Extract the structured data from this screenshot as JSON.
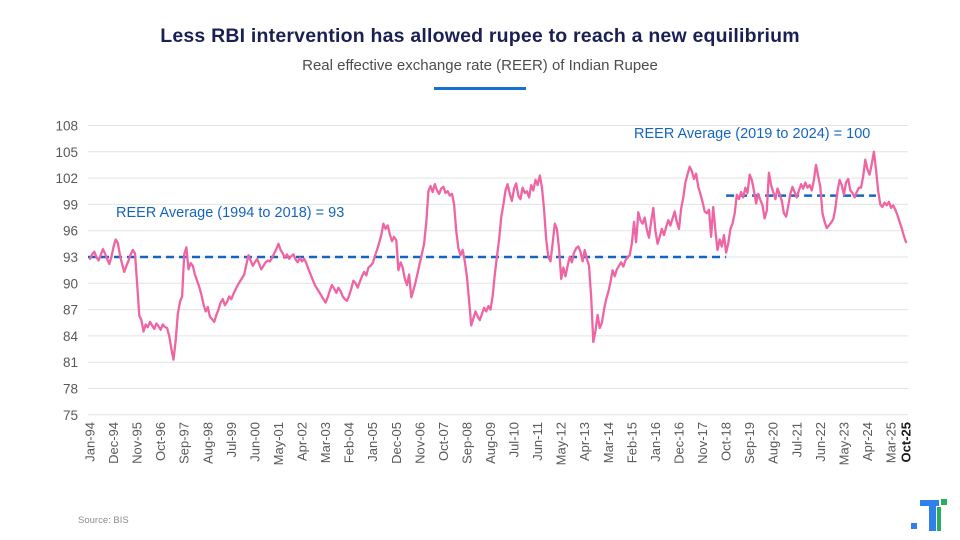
{
  "header": {
    "title": "Less RBI intervention has allowed rupee to reach a new equilibrium",
    "subtitle": "Real effective exchange rate (REER) of Indian Rupee"
  },
  "footer": {
    "source": "Source: BIS"
  },
  "colors": {
    "title_navy": "#1b2054",
    "series_pink": "#ef64a3",
    "reference_blue": "#1565c0",
    "grid_gray": "#e3e3e3",
    "axis_text_gray": "#595959",
    "logo_blue": "#2f80ed",
    "logo_green": "#27ae60"
  },
  "chart_data": {
    "type": "line",
    "title": "Less RBI intervention has allowed rupee to reach a new equilibrium",
    "subtitle": "Real effective exchange rate (REER) of Indian Rupee",
    "xlabel": "",
    "ylabel": "",
    "ylim": [
      75,
      108
    ],
    "y_ticks": [
      75,
      78,
      81,
      84,
      87,
      90,
      93,
      96,
      99,
      102,
      105,
      108
    ],
    "grid": true,
    "legend_position": "none",
    "x_tick_labels": [
      "Jan-94",
      "Dec-94",
      "Nov-95",
      "Oct-96",
      "Sep-97",
      "Aug-98",
      "Jul-99",
      "Jun-00",
      "May-01",
      "Apr-02",
      "Mar-03",
      "Feb-04",
      "Jan-05",
      "Dec-05",
      "Nov-06",
      "Oct-07",
      "Sep-08",
      "Aug-09",
      "Jul-10",
      "Jun-11",
      "May-12",
      "Apr-13",
      "Mar-14",
      "Feb-15",
      "Jan-16",
      "Dec-16",
      "Nov-17",
      "Oct-18",
      "Sep-19",
      "Aug-20",
      "Jul-21",
      "Jun-22",
      "May-23",
      "Apr-24",
      "Mar-25",
      "Oct-25"
    ],
    "x_tick_month_offsets": [
      0,
      11,
      22,
      33,
      44,
      55,
      66,
      77,
      88,
      99,
      110,
      121,
      132,
      143,
      154,
      165,
      176,
      187,
      198,
      209,
      220,
      231,
      242,
      253,
      264,
      275,
      286,
      297,
      308,
      319,
      330,
      341,
      352,
      363,
      374,
      381
    ],
    "x_range_months": [
      "Jan-94",
      "Oct-25"
    ],
    "months_total": 382,
    "series": [
      {
        "name": "REER of Indian Rupee",
        "color": "#ef64a3",
        "values": [
          92.8,
          93.3,
          93.6,
          93.0,
          92.6,
          93.2,
          93.9,
          93.4,
          92.8,
          92.2,
          93.0,
          94.2,
          95.0,
          94.6,
          93.2,
          92.2,
          91.3,
          92.0,
          92.6,
          93.3,
          93.8,
          93.4,
          90.0,
          86.3,
          85.8,
          84.5,
          85.3,
          85.0,
          85.6,
          85.2,
          84.8,
          85.4,
          85.1,
          84.7,
          85.3,
          85.0,
          84.9,
          84.0,
          82.5,
          81.3,
          83.5,
          86.5,
          87.9,
          88.5,
          93.3,
          94.1,
          91.6,
          92.3,
          92.0,
          91.0,
          90.3,
          89.6,
          88.7,
          87.6,
          86.8,
          87.3,
          86.2,
          85.9,
          85.6,
          86.4,
          87.0,
          87.8,
          88.2,
          87.5,
          87.9,
          88.5,
          88.2,
          88.8,
          89.3,
          89.8,
          90.2,
          90.6,
          91.0,
          92.1,
          93.2,
          92.6,
          92.0,
          92.4,
          92.8,
          92.2,
          91.6,
          92.0,
          92.4,
          92.6,
          92.5,
          92.9,
          93.4,
          93.9,
          94.5,
          93.8,
          93.4,
          92.9,
          93.3,
          92.8,
          93.1,
          93.3,
          92.7,
          92.4,
          92.9,
          92.5,
          92.8,
          92.3,
          91.6,
          91.0,
          90.4,
          89.8,
          89.4,
          89.0,
          88.6,
          88.2,
          87.8,
          88.4,
          89.2,
          89.8,
          89.4,
          88.9,
          89.5,
          89.1,
          88.5,
          88.2,
          88.0,
          88.6,
          89.4,
          90.3,
          90.0,
          89.5,
          90.2,
          90.8,
          91.3,
          90.9,
          91.8,
          92.0,
          92.3,
          93.1,
          93.8,
          94.6,
          95.5,
          96.8,
          96.2,
          96.6,
          95.6,
          94.8,
          95.3,
          94.9,
          91.5,
          92.4,
          91.8,
          90.5,
          89.8,
          91.0,
          88.4,
          89.2,
          90.1,
          91.2,
          92.3,
          93.4,
          94.5,
          97.0,
          100.5,
          101.1,
          100.4,
          101.3,
          100.6,
          100.2,
          100.8,
          101.0,
          100.3,
          100.5,
          100.0,
          100.2,
          99.0,
          96.0,
          94.0,
          93.2,
          93.8,
          92.5,
          90.8,
          88.0,
          85.2,
          86.0,
          86.8,
          86.2,
          85.8,
          86.5,
          87.2,
          86.8,
          87.4,
          87.0,
          88.5,
          91.0,
          93.0,
          95.0,
          97.5,
          99.0,
          100.6,
          101.3,
          100.2,
          99.4,
          100.8,
          101.4,
          100.0,
          99.6,
          100.9,
          100.3,
          100.5,
          99.8,
          101.2,
          100.6,
          101.8,
          101.2,
          102.3,
          101.0,
          98.5,
          95.0,
          93.0,
          92.5,
          94.5,
          96.8,
          96.2,
          94.0,
          90.5,
          91.8,
          90.8,
          92.0,
          93.0,
          92.4,
          93.5,
          94.0,
          94.2,
          93.6,
          92.5,
          93.8,
          92.8,
          92.0,
          88.4,
          83.3,
          84.5,
          86.4,
          84.9,
          85.5,
          87.0,
          88.2,
          89.0,
          90.1,
          91.5,
          90.8,
          91.6,
          92.0,
          92.4,
          91.9,
          92.6,
          93.0,
          93.2,
          94.6,
          97.0,
          94.7,
          98.1,
          97.2,
          96.8,
          97.5,
          96.1,
          95.2,
          97.0,
          98.6,
          96.0,
          94.5,
          95.3,
          96.2,
          95.5,
          96.4,
          97.2,
          96.6,
          97.4,
          98.2,
          97.0,
          96.2,
          98.5,
          99.8,
          101.5,
          102.4,
          103.3,
          102.8,
          101.9,
          102.5,
          101.0,
          100.2,
          99.3,
          98.2,
          98.0,
          98.4,
          95.3,
          98.7,
          96.0,
          93.8,
          95.0,
          94.2,
          95.5,
          93.5,
          94.5,
          96.2,
          96.8,
          98.0,
          100.1,
          99.6,
          100.4,
          99.8,
          100.9,
          100.3,
          102.4,
          101.8,
          100.6,
          99.1,
          100.2,
          99.5,
          98.9,
          97.4,
          98.3,
          102.6,
          101.2,
          100.4,
          99.6,
          100.8,
          100.2,
          99.4,
          98.0,
          97.6,
          98.8,
          100.2,
          101.0,
          100.4,
          99.8,
          100.6,
          101.3,
          100.8,
          101.5,
          100.9,
          101.2,
          100.6,
          101.8,
          103.5,
          102.2,
          101.0,
          98.0,
          97.0,
          96.3,
          96.6,
          96.9,
          97.3,
          98.5,
          100.5,
          101.8,
          101.2,
          100.1,
          101.5,
          101.9,
          100.6,
          100.3,
          99.8,
          100.4,
          100.9,
          100.9,
          102.2,
          104.1,
          103.0,
          102.4,
          103.6,
          105.0,
          103.0,
          100.5,
          99.0,
          98.7,
          99.2,
          98.9,
          99.3,
          98.6,
          98.9,
          98.4,
          97.8,
          97.0,
          96.3,
          95.4,
          94.7
        ]
      }
    ],
    "reference_lines": [
      {
        "label": "REER Average (1994 to 2018) = 93",
        "value": 93,
        "from_month": 0,
        "to_month": 297,
        "color": "#1565c0"
      },
      {
        "label": "REER Average (2019 to 2024) = 100",
        "value": 100,
        "from_month": 297,
        "to_month": 367,
        "color": "#1565c0"
      }
    ],
    "source": "Source: BIS"
  }
}
